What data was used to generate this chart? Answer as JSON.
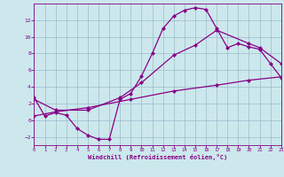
{
  "xlabel": "Windchill (Refroidissement éolien,°C)",
  "xlim": [
    0,
    23
  ],
  "ylim": [
    -3,
    14
  ],
  "xticks": [
    0,
    1,
    2,
    3,
    4,
    5,
    6,
    7,
    8,
    9,
    10,
    11,
    12,
    13,
    14,
    15,
    16,
    17,
    18,
    19,
    20,
    21,
    22,
    23
  ],
  "yticks": [
    -2,
    0,
    2,
    4,
    6,
    8,
    10,
    12
  ],
  "bg_color": "#cce8ec",
  "line_color": "#880088",
  "grid_color": "#99bbcc",
  "line1_x": [
    0,
    1,
    2,
    3,
    4,
    5,
    6,
    7,
    8,
    9,
    10,
    11,
    12,
    13,
    14,
    15,
    16,
    17,
    18,
    19,
    20,
    21,
    22,
    23
  ],
  "line1_y": [
    2.7,
    0.5,
    0.9,
    0.6,
    -1.0,
    -1.8,
    -2.3,
    -2.3,
    2.5,
    3.2,
    5.3,
    8.0,
    11.0,
    12.5,
    13.2,
    13.5,
    13.3,
    11.0,
    8.7,
    9.2,
    8.8,
    8.5,
    6.8,
    5.1
  ],
  "line2_x": [
    0,
    2,
    5,
    9,
    13,
    17,
    20,
    23
  ],
  "line2_y": [
    0.5,
    1.0,
    1.5,
    2.5,
    3.5,
    4.2,
    4.8,
    5.2
  ],
  "line3_x": [
    0,
    2,
    5,
    8,
    10,
    13,
    15,
    17,
    20,
    21,
    23
  ],
  "line3_y": [
    2.5,
    1.2,
    1.2,
    2.7,
    4.5,
    7.8,
    9.0,
    10.8,
    9.2,
    8.7,
    6.8
  ],
  "marker": "D",
  "markersize": 2.5,
  "linewidth": 0.9
}
